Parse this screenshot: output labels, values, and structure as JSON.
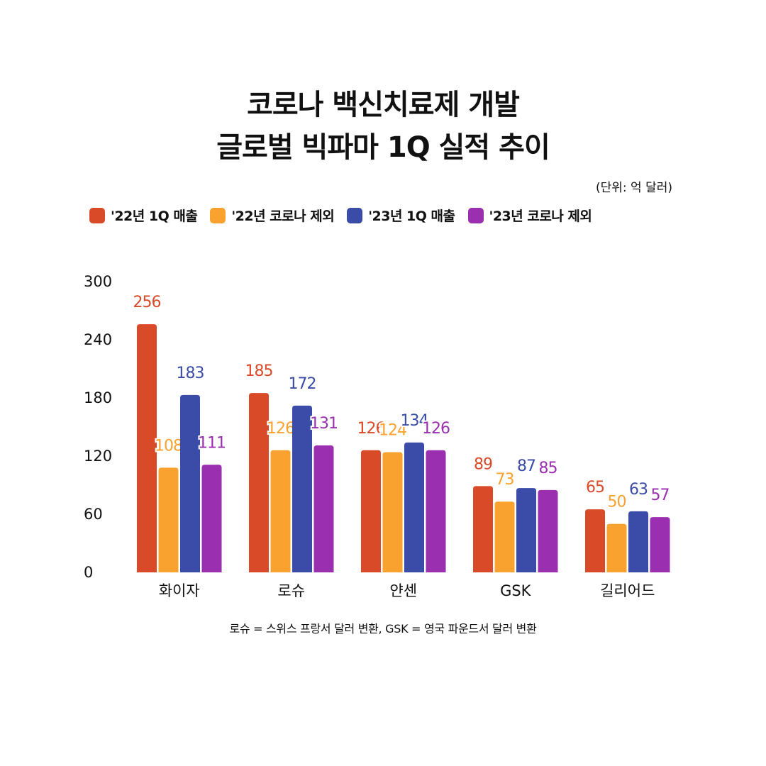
{
  "title_line1": "코로나 백신치료제 개발",
  "title_line2": "글로벌 빅파마 1Q 실적 추이",
  "unit": "(단위: 억 달러)",
  "note": "로슈 = 스위스 프랑서 달러 변환, GSK = 영국 파운드서 달러 변환",
  "chart_data": {
    "type": "bar",
    "title": "코로나 백신치료제 개발 글로벌 빅파마 1Q 실적 추이",
    "unit": "(단위: 억 달러)",
    "categories": [
      "화이자",
      "로슈",
      "얀센",
      "GSK",
      "길리어드"
    ],
    "series": [
      {
        "name": "'22년 1Q 매출",
        "color": "#d84a28",
        "values": [
          256,
          185,
          126,
          89,
          65
        ],
        "labels": [
          "256",
          "185",
          "126",
          "89",
          "65"
        ]
      },
      {
        "name": "'22년 코로나 제외",
        "color": "#f9a22f",
        "values": [
          108,
          126,
          124,
          73,
          50
        ],
        "labels": [
          "108",
          "126",
          "124",
          "73",
          "50"
        ]
      },
      {
        "name": "'23년 1Q 매출",
        "color": "#3a4ca8",
        "values": [
          183,
          172,
          134,
          87,
          63
        ],
        "labels": [
          "183",
          "172",
          "134",
          "87",
          "63"
        ]
      },
      {
        "name": "'23년 코로나 제외",
        "color": "#9a2fb0",
        "values": [
          111,
          131,
          126,
          85,
          57
        ],
        "labels": [
          "111",
          "131",
          "126",
          "85",
          "57"
        ]
      }
    ],
    "yticks": [
      "0",
      "60",
      "120",
      "180",
      "240",
      "300"
    ],
    "ylim": [
      0,
      300
    ],
    "grid": false,
    "legend": "top"
  }
}
